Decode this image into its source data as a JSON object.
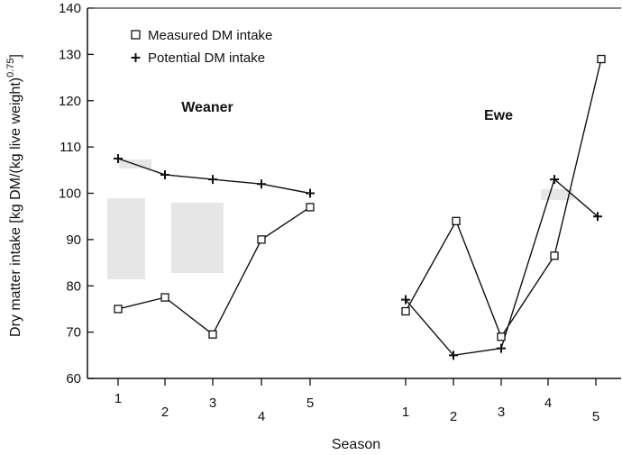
{
  "chart_data": {
    "type": "line",
    "xlabel": "Season",
    "ylabel": "Dry matter intake [kg DM/(kg live weight)",
    "ylabel_superscript": "0.75",
    "ylabel_close": "]",
    "ylim": [
      60,
      140
    ],
    "yticks": [
      60,
      70,
      80,
      90,
      100,
      110,
      120,
      130,
      140
    ],
    "legend": {
      "position": "top-left",
      "entries": [
        {
          "marker": "square",
          "label": "Measured DM intake"
        },
        {
          "marker": "plus",
          "label": "Potential DM intake"
        }
      ]
    },
    "groups": [
      {
        "label": "Weaner",
        "categories": [
          "1",
          "2",
          "3",
          "4",
          "5"
        ],
        "series": [
          {
            "name": "Measured DM intake",
            "marker": "square",
            "values": [
              75,
              77.5,
              69.5,
              90,
              97
            ]
          },
          {
            "name": "Potential DM intake",
            "marker": "plus",
            "values": [
              107.5,
              104,
              103,
              102,
              100
            ]
          }
        ]
      },
      {
        "label": "Ewe",
        "categories": [
          "1",
          "2",
          "3",
          "4",
          "5"
        ],
        "series": [
          {
            "name": "Measured DM intake",
            "marker": "square",
            "values": [
              74.5,
              94,
              69,
              86.5,
              129
            ]
          },
          {
            "name": "Potential DM intake",
            "marker": "plus",
            "values": [
              77,
              65,
              66.5,
              103,
              95
            ]
          }
        ]
      }
    ]
  }
}
